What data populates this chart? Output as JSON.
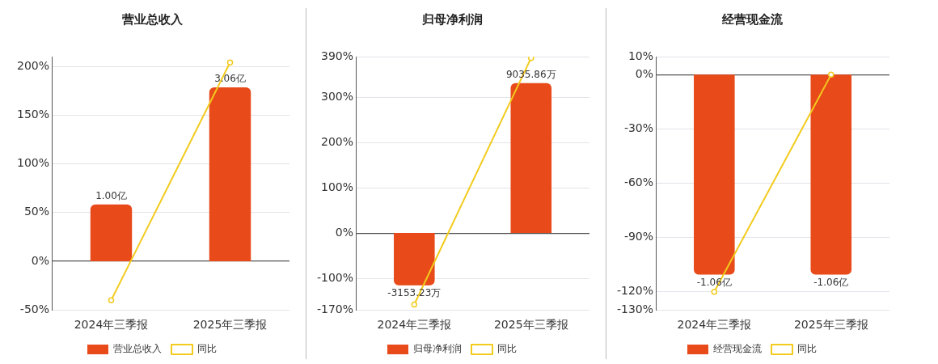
{
  "chart_data": [
    {
      "type": "bar",
      "title": "营业总收入",
      "categories": [
        "2024年三季报",
        "2025年三季报"
      ],
      "ylim": [
        -50,
        210
      ],
      "yticks": [
        {
          "value": -50,
          "label": "-50%"
        },
        {
          "value": 0,
          "label": "0%"
        },
        {
          "value": 50,
          "label": "50%"
        },
        {
          "value": 100,
          "label": "100%"
        },
        {
          "value": 150,
          "label": "150%"
        },
        {
          "value": 200,
          "label": "200%"
        }
      ],
      "grid": "y",
      "legend": "bottom",
      "series": [
        {
          "name": "营业总收入",
          "color": "#e84a1a",
          "axis": "y2",
          "values": [
            1.0,
            3.06
          ],
          "value_labels": [
            "1.00亿",
            "3.06亿"
          ]
        },
        {
          "type": "line",
          "name": "同比",
          "color": "#f2cb1d",
          "marker": "circle",
          "values": [
            -40,
            204
          ]
        }
      ]
    },
    {
      "type": "bar",
      "title": "归母净利润",
      "categories": [
        "2024年三季报",
        "2025年三季报"
      ],
      "ylim": [
        -170,
        390
      ],
      "yticks": [
        {
          "value": -170,
          "label": "-170%"
        },
        {
          "value": -100,
          "label": "-100%"
        },
        {
          "value": 0,
          "label": "0%"
        },
        {
          "value": 100,
          "label": "100%"
        },
        {
          "value": 200,
          "label": "200%"
        },
        {
          "value": 300,
          "label": "300%"
        },
        {
          "value": 390,
          "label": "390%"
        }
      ],
      "grid": "y",
      "legend": "bottom",
      "series": [
        {
          "name": "归母净利润",
          "color": "#e84a1a",
          "axis": "y2",
          "values": [
            -3153.23,
            9035.86
          ],
          "value_labels": [
            "-3153.23万",
            "9035.86万"
          ]
        },
        {
          "type": "line",
          "name": "同比",
          "color": "#f2cb1d",
          "marker": "circle",
          "values": [
            -158,
            387
          ]
        }
      ]
    },
    {
      "type": "bar",
      "title": "经营现金流",
      "categories": [
        "2024年三季报",
        "2025年三季报"
      ],
      "ylim": [
        -130,
        10
      ],
      "yticks": [
        {
          "value": -130,
          "label": "-130%"
        },
        {
          "value": -120,
          "label": "-120%"
        },
        {
          "value": -90,
          "label": "-90%"
        },
        {
          "value": -60,
          "label": "-60%"
        },
        {
          "value": -30,
          "label": "-30%"
        },
        {
          "value": 0,
          "label": "0%"
        },
        {
          "value": 10,
          "label": "10%"
        }
      ],
      "grid": "y",
      "legend": "bottom",
      "series": [
        {
          "name": "经营现金流",
          "color": "#e84a1a",
          "axis": "y2",
          "values": [
            -1.06,
            -1.06
          ],
          "value_labels": [
            "-1.06亿",
            "-1.06亿"
          ]
        },
        {
          "type": "line",
          "name": "同比",
          "color": "#f2cb1d",
          "marker": "circle",
          "values": [
            -120,
            0
          ]
        }
      ]
    }
  ]
}
